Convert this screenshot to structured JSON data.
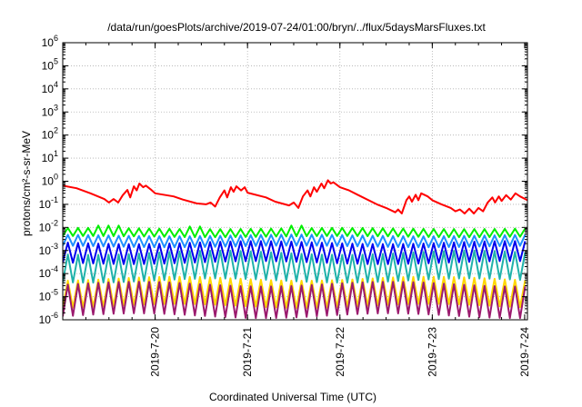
{
  "chart_data": {
    "type": "line",
    "title": "/data/run/goesPlots/archive/2019-07-24/01:00/bryn/../flux/5daysMarsFluxes.txt",
    "xlabel": "Coordinated Universal Time (UTC)",
    "ylabel": "protons/cm²-s-sr-MeV",
    "y_scale": "log",
    "ylim": [
      1e-06,
      1000000.0
    ],
    "xlim": [
      0,
      5.03
    ],
    "y_ticks": [
      {
        "base": "10",
        "exp": "-6"
      },
      {
        "base": "10",
        "exp": "-5"
      },
      {
        "base": "10",
        "exp": "-4"
      },
      {
        "base": "10",
        "exp": "-3"
      },
      {
        "base": "10",
        "exp": "-2"
      },
      {
        "base": "10",
        "exp": "-1"
      },
      {
        "base": "10",
        "exp": "0"
      },
      {
        "base": "10",
        "exp": "1"
      },
      {
        "base": "10",
        "exp": "2"
      },
      {
        "base": "10",
        "exp": "3"
      },
      {
        "base": "10",
        "exp": "4"
      },
      {
        "base": "10",
        "exp": "5"
      },
      {
        "base": "10",
        "exp": "6"
      }
    ],
    "x_ticks": [
      {
        "label": "2019-7-20",
        "x": 1
      },
      {
        "label": "2019-7-21",
        "x": 2
      },
      {
        "label": "2019-7-22",
        "x": 3
      },
      {
        "label": "2019-7-23",
        "x": 4
      },
      {
        "label": "2019-7-24",
        "x": 5
      }
    ],
    "grid": true,
    "series": [
      {
        "color": "#ff0000",
        "values": [
          [
            0,
            0.65
          ],
          [
            0.15,
            0.5
          ],
          [
            0.3,
            0.3
          ],
          [
            0.45,
            0.17
          ],
          [
            0.5,
            0.12
          ],
          [
            0.55,
            0.17
          ],
          [
            0.6,
            0.12
          ],
          [
            0.65,
            0.25
          ],
          [
            0.7,
            0.42
          ],
          [
            0.73,
            0.2
          ],
          [
            0.77,
            0.6
          ],
          [
            0.8,
            0.4
          ],
          [
            0.83,
            0.8
          ],
          [
            0.87,
            0.55
          ],
          [
            0.9,
            0.65
          ],
          [
            0.95,
            0.45
          ],
          [
            1.0,
            0.3
          ],
          [
            1.2,
            0.22
          ],
          [
            1.3,
            0.16
          ],
          [
            1.45,
            0.11
          ],
          [
            1.55,
            0.1
          ],
          [
            1.6,
            0.12
          ],
          [
            1.65,
            0.08
          ],
          [
            1.7,
            0.2
          ],
          [
            1.75,
            0.4
          ],
          [
            1.78,
            0.2
          ],
          [
            1.82,
            0.55
          ],
          [
            1.85,
            0.35
          ],
          [
            1.88,
            0.6
          ],
          [
            1.93,
            0.4
          ],
          [
            1.97,
            0.55
          ],
          [
            2.0,
            0.32
          ],
          [
            2.2,
            0.2
          ],
          [
            2.3,
            0.13
          ],
          [
            2.45,
            0.09
          ],
          [
            2.5,
            0.12
          ],
          [
            2.55,
            0.07
          ],
          [
            2.6,
            0.22
          ],
          [
            2.65,
            0.4
          ],
          [
            2.68,
            0.22
          ],
          [
            2.72,
            0.55
          ],
          [
            2.75,
            0.35
          ],
          [
            2.8,
            0.8
          ],
          [
            2.83,
            0.5
          ],
          [
            2.87,
            1.1
          ],
          [
            2.9,
            0.8
          ],
          [
            2.93,
            0.9
          ],
          [
            3.0,
            0.55
          ],
          [
            3.1,
            0.4
          ],
          [
            3.2,
            0.25
          ],
          [
            3.4,
            0.1
          ],
          [
            3.5,
            0.07
          ],
          [
            3.6,
            0.045
          ],
          [
            3.63,
            0.06
          ],
          [
            3.67,
            0.04
          ],
          [
            3.72,
            0.15
          ],
          [
            3.75,
            0.22
          ],
          [
            3.78,
            0.13
          ],
          [
            3.82,
            0.26
          ],
          [
            3.85,
            0.15
          ],
          [
            3.88,
            0.3
          ],
          [
            3.95,
            0.22
          ],
          [
            4.0,
            0.15
          ],
          [
            4.1,
            0.1
          ],
          [
            4.2,
            0.07
          ],
          [
            4.25,
            0.05
          ],
          [
            4.3,
            0.06
          ],
          [
            4.35,
            0.04
          ],
          [
            4.4,
            0.065
          ],
          [
            4.45,
            0.04
          ],
          [
            4.5,
            0.07
          ],
          [
            4.55,
            0.05
          ],
          [
            4.6,
            0.12
          ],
          [
            4.65,
            0.2
          ],
          [
            4.68,
            0.12
          ],
          [
            4.72,
            0.22
          ],
          [
            4.75,
            0.14
          ],
          [
            4.8,
            0.25
          ],
          [
            4.85,
            0.16
          ],
          [
            4.9,
            0.3
          ],
          [
            4.95,
            0.22
          ],
          [
            5.03,
            0.15
          ]
        ]
      },
      {
        "color": "#00ee00",
        "start": 0,
        "end": 5.03,
        "period": 0.11,
        "peak": 0.009,
        "trough": 0.004,
        "bumps": [
          [
            0.5,
            0.012
          ],
          [
            1.45,
            0.011
          ],
          [
            2.5,
            0.012
          ]
        ]
      },
      {
        "color": "#1e90ff",
        "start": 0,
        "end": 5.03,
        "period": 0.11,
        "peak": 0.0045,
        "trough": 0.0015,
        "bumps": []
      },
      {
        "color": "#0000ee",
        "start": 0,
        "end": 5.03,
        "period": 0.11,
        "peak": 0.0022,
        "trough": 0.0003,
        "bumps": []
      },
      {
        "color": "#20b2aa",
        "start": 0,
        "end": 5.03,
        "period": 0.11,
        "peak": 0.0008,
        "trough": 5e-05,
        "bumps": []
      },
      {
        "color": "#ffd700",
        "start": 0,
        "end": 5.03,
        "period": 0.11,
        "peak": 6e-05,
        "trough": 4e-06,
        "bumps": []
      },
      {
        "color": "#9b1a6e",
        "start": 0,
        "end": 5.03,
        "period": 0.11,
        "peak": 3.5e-05,
        "trough": 1.5e-06,
        "bumps": []
      }
    ]
  }
}
